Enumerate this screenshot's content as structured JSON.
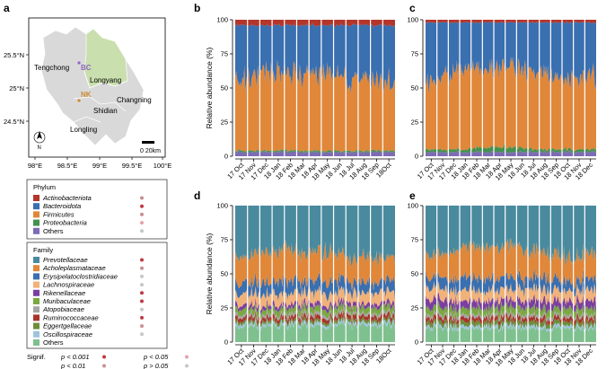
{
  "panel_labels": {
    "a": "a",
    "b": "b",
    "c": "c",
    "d": "d",
    "e": "e"
  },
  "map": {
    "lat_ticks": [
      "25.5°N",
      "25°N",
      "24.5°N"
    ],
    "lon_ticks": [
      "98°E",
      "98.5°E",
      "99°E",
      "99.5°E",
      "100°E"
    ],
    "places": {
      "tengchong": "Tengchong",
      "longyang": "Longyang",
      "changning": "Changning",
      "shidian": "Shidian",
      "longling": "Longling"
    },
    "sites": {
      "bc": "BC",
      "nk": "NK"
    },
    "north": "N",
    "scale": "0 20km",
    "colors": {
      "county": "#d9d9d9",
      "longyang": "#c9dfae",
      "bc": "#8e67c2",
      "nk": "#cd8a35"
    }
  },
  "legend": {
    "phylum_title": "Phylum",
    "phylum": [
      {
        "name": "Actinobacteriota",
        "color": "#b4362a",
        "sig": "#c98f96",
        "italic": true
      },
      {
        "name": "Bacteroidota",
        "color": "#3a6fb0",
        "sig": "#c13a45",
        "italic": true
      },
      {
        "name": "Firmicutes",
        "color": "#e0873a",
        "sig": "#c98f96",
        "italic": true
      },
      {
        "name": "Proteobacteria",
        "color": "#44914f",
        "sig": "#e6a1ab",
        "italic": true
      },
      {
        "name": "Others",
        "color": "#7d6bb5",
        "sig": "#c7c7c7",
        "italic": false
      }
    ],
    "family_title": "Family",
    "family": [
      {
        "name": "Prevotellaceae",
        "color": "#4a8a9e",
        "sig": "#c13a45",
        "italic": true
      },
      {
        "name": "Acholeplasmataceae",
        "color": "#e0873a",
        "sig": "#c98f96",
        "italic": true
      },
      {
        "name": "Erysipelatoclostridiaceae",
        "color": "#3a6fb0",
        "sig": "#c7c7c7",
        "italic": true
      },
      {
        "name": "Lachnospiraceae",
        "color": "#f1b27a",
        "sig": "#c7c7c7",
        "italic": true
      },
      {
        "name": "Rikenellaceae",
        "color": "#7a3fa0",
        "sig": "#c13a45",
        "italic": true
      },
      {
        "name": "Muribaculaceae",
        "color": "#7aa841",
        "sig": "#c13a45",
        "italic": true
      },
      {
        "name": "Atopobiaceae",
        "color": "#a5a5a5",
        "sig": "#c7c7c7",
        "italic": true
      },
      {
        "name": "Ruminococcaceae",
        "color": "#a8352a",
        "sig": "#c13a45",
        "italic": true
      },
      {
        "name": "Eggertgellaceae",
        "color": "#6b8e3a",
        "sig": "#c98f96",
        "italic": true
      },
      {
        "name": "Oscillospiraceae",
        "color": "#9ec4dc",
        "sig": "#c7c7c7",
        "italic": true
      },
      {
        "name": "Others",
        "color": "#7fc08f",
        "sig": null,
        "italic": false
      }
    ],
    "signif_label": "Signif.",
    "signif": [
      {
        "label": "p < 0.001",
        "color": "#c13a45"
      },
      {
        "label": "p < 0.05",
        "color": "#e6a1ab"
      },
      {
        "label": "p < 0.01",
        "color": "#c98f96"
      },
      {
        "label": "p > 0.05",
        "color": "#c7c7c7"
      }
    ]
  },
  "chart_data": [
    {
      "panel": "b",
      "type": "area",
      "stacked": true,
      "level": "phylum",
      "site": "BC",
      "title": "",
      "xlabel": "",
      "ylabel": "Relative abundance (%)",
      "ylim": [
        0,
        100
      ],
      "yticks": [
        0,
        25,
        50,
        75,
        100
      ],
      "categories": [
        "17 Oct",
        "17 Nov",
        "17 Dec",
        "18 Jan",
        "18 Feb",
        "18 Mar",
        "18 Apr",
        "18 May",
        "18 Jun",
        "18 Jul",
        "18 Aug",
        "18 Sep",
        "18Oct"
      ],
      "series": [
        {
          "name": "Others",
          "values": [
            3,
            3,
            3,
            3,
            3,
            3,
            3,
            3,
            3,
            3,
            3,
            3,
            3
          ]
        },
        {
          "name": "Proteobacteria",
          "values": [
            1,
            1,
            1,
            1,
            1,
            1,
            1,
            1,
            1,
            1,
            1,
            1,
            1
          ]
        },
        {
          "name": "Firmicutes",
          "values": [
            52,
            54,
            58,
            57,
            60,
            56,
            55,
            58,
            54,
            53,
            55,
            52,
            50
          ]
        },
        {
          "name": "Bacteroidota",
          "values": [
            40,
            38,
            34,
            35,
            32,
            36,
            37,
            34,
            38,
            39,
            37,
            40,
            42
          ]
        },
        {
          "name": "Actinobacteriota",
          "values": [
            4,
            4,
            4,
            4,
            4,
            4,
            4,
            4,
            4,
            4,
            4,
            4,
            4
          ]
        }
      ]
    },
    {
      "panel": "c",
      "type": "area",
      "stacked": true,
      "level": "phylum",
      "site": "NK",
      "title": "",
      "xlabel": "",
      "ylabel": "",
      "ylim": [
        0,
        100
      ],
      "yticks": [
        0,
        25,
        50,
        75,
        100
      ],
      "categories": [
        "17 Oct",
        "17 Nov",
        "17 Dec",
        "18 Jan",
        "18 Feb",
        "18 Mar",
        "18 Apr",
        "18 May",
        "18 Jun",
        "18 Jul",
        "18 Aug",
        "18 Sep",
        "18 Oct",
        "18 Nov",
        "18 Dec"
      ],
      "series": [
        {
          "name": "Others",
          "values": [
            3,
            3,
            3,
            3,
            3,
            3,
            3,
            3,
            3,
            3,
            3,
            3,
            3,
            3,
            3
          ]
        },
        {
          "name": "Proteobacteria",
          "values": [
            2,
            2,
            2,
            2,
            3,
            3,
            4,
            4,
            3,
            2,
            2,
            2,
            2,
            2,
            2
          ]
        },
        {
          "name": "Firmicutes",
          "values": [
            48,
            52,
            55,
            58,
            60,
            58,
            56,
            60,
            57,
            55,
            54,
            53,
            52,
            55,
            54
          ]
        },
        {
          "name": "Bacteroidota",
          "values": [
            45,
            41,
            38,
            35,
            32,
            34,
            35,
            31,
            35,
            38,
            39,
            40,
            41,
            38,
            39
          ]
        },
        {
          "name": "Actinobacteriota",
          "values": [
            2,
            2,
            2,
            2,
            2,
            2,
            2,
            2,
            2,
            2,
            2,
            2,
            2,
            2,
            2
          ]
        }
      ]
    },
    {
      "panel": "d",
      "type": "area",
      "stacked": true,
      "level": "family",
      "site": "BC",
      "title": "",
      "xlabel": "",
      "ylabel": "Relative abundance (%)",
      "ylim": [
        0,
        100
      ],
      "yticks": [
        0,
        25,
        50,
        75,
        100
      ],
      "categories": [
        "17 Oct",
        "17 Nov",
        "17 Dec",
        "18 Jan",
        "18 Feb",
        "18 Mar",
        "18 Apr",
        "18 May",
        "18 Jun",
        "18 Jul",
        "18 Aug",
        "18 Sep",
        "18Oct"
      ],
      "series": [
        {
          "name": "Others",
          "values": [
            12,
            12,
            12,
            12,
            12,
            12,
            12,
            12,
            12,
            12,
            12,
            12,
            12
          ]
        },
        {
          "name": "Oscillospiraceae",
          "values": [
            2,
            2,
            2,
            2,
            2,
            2,
            2,
            2,
            2,
            2,
            2,
            2,
            2
          ]
        },
        {
          "name": "Eggertgellaceae",
          "values": [
            2,
            2,
            2,
            2,
            2,
            2,
            2,
            2,
            2,
            2,
            2,
            2,
            2
          ]
        },
        {
          "name": "Ruminococcaceae",
          "values": [
            3,
            3,
            3,
            3,
            3,
            3,
            3,
            3,
            3,
            3,
            3,
            3,
            3
          ]
        },
        {
          "name": "Atopobiaceae",
          "values": [
            2,
            2,
            2,
            2,
            2,
            2,
            2,
            2,
            2,
            2,
            2,
            2,
            2
          ]
        },
        {
          "name": "Muribaculaceae",
          "values": [
            4,
            4,
            4,
            4,
            4,
            4,
            4,
            4,
            4,
            4,
            4,
            4,
            4
          ]
        },
        {
          "name": "Rikenellaceae",
          "values": [
            3,
            3,
            3,
            3,
            3,
            3,
            3,
            3,
            3,
            3,
            3,
            3,
            3
          ]
        },
        {
          "name": "Lachnospiraceae",
          "values": [
            8,
            8,
            8,
            8,
            8,
            8,
            8,
            8,
            8,
            8,
            8,
            8,
            8
          ]
        },
        {
          "name": "Erysipelatoclostridiaceae",
          "values": [
            8,
            8,
            9,
            9,
            9,
            8,
            8,
            9,
            8,
            8,
            8,
            8,
            8
          ]
        },
        {
          "name": "Acholeplasmataceae",
          "values": [
            18,
            19,
            22,
            22,
            24,
            20,
            20,
            22,
            19,
            18,
            19,
            17,
            16
          ]
        },
        {
          "name": "Prevotellaceae",
          "values": [
            38,
            37,
            33,
            33,
            31,
            36,
            36,
            33,
            37,
            38,
            37,
            39,
            40
          ]
        }
      ]
    },
    {
      "panel": "e",
      "type": "area",
      "stacked": true,
      "level": "family",
      "site": "NK",
      "title": "",
      "xlabel": "",
      "ylabel": "",
      "ylim": [
        0,
        100
      ],
      "yticks": [
        0,
        25,
        50,
        75,
        100
      ],
      "categories": [
        "17 Oct",
        "17 Nov",
        "17 Dec",
        "18 Jan",
        "18 Feb",
        "18 Mar",
        "18 Apr",
        "18 May",
        "18 Jun",
        "18 Jul",
        "18 Aug",
        "18 Sep",
        "18 Oct",
        "18 Nov",
        "18 Dec"
      ],
      "series": [
        {
          "name": "Others",
          "values": [
            10,
            10,
            10,
            10,
            10,
            10,
            10,
            10,
            10,
            10,
            10,
            10,
            10,
            10,
            10
          ]
        },
        {
          "name": "Oscillospiraceae",
          "values": [
            2,
            2,
            2,
            2,
            2,
            2,
            2,
            2,
            2,
            2,
            2,
            2,
            2,
            2,
            2
          ]
        },
        {
          "name": "Eggertgellaceae",
          "values": [
            3,
            3,
            3,
            3,
            3,
            3,
            3,
            3,
            3,
            3,
            3,
            3,
            3,
            3,
            3
          ]
        },
        {
          "name": "Ruminococcaceae",
          "values": [
            3,
            3,
            3,
            3,
            3,
            3,
            3,
            3,
            3,
            3,
            3,
            3,
            3,
            3,
            3
          ]
        },
        {
          "name": "Atopobiaceae",
          "values": [
            2,
            2,
            2,
            2,
            2,
            2,
            2,
            2,
            2,
            2,
            2,
            2,
            2,
            2,
            2
          ]
        },
        {
          "name": "Muribaculaceae",
          "values": [
            5,
            5,
            5,
            5,
            5,
            5,
            5,
            5,
            5,
            5,
            5,
            5,
            5,
            5,
            5
          ]
        },
        {
          "name": "Rikenellaceae",
          "values": [
            6,
            6,
            6,
            5,
            5,
            5,
            5,
            5,
            5,
            6,
            6,
            6,
            6,
            6,
            6
          ]
        },
        {
          "name": "Lachnospiraceae",
          "values": [
            8,
            8,
            8,
            8,
            8,
            8,
            8,
            8,
            8,
            8,
            8,
            8,
            8,
            8,
            8
          ]
        },
        {
          "name": "Erysipelatoclostridiaceae",
          "values": [
            7,
            8,
            8,
            9,
            9,
            9,
            8,
            9,
            8,
            8,
            8,
            8,
            7,
            8,
            8
          ]
        },
        {
          "name": "Acholeplasmataceae",
          "values": [
            16,
            18,
            20,
            22,
            24,
            22,
            21,
            24,
            22,
            20,
            19,
            18,
            17,
            19,
            18
          ]
        },
        {
          "name": "Prevotellaceae",
          "values": [
            38,
            35,
            33,
            31,
            29,
            31,
            33,
            29,
            32,
            34,
            36,
            37,
            39,
            36,
            37
          ]
        }
      ]
    }
  ]
}
